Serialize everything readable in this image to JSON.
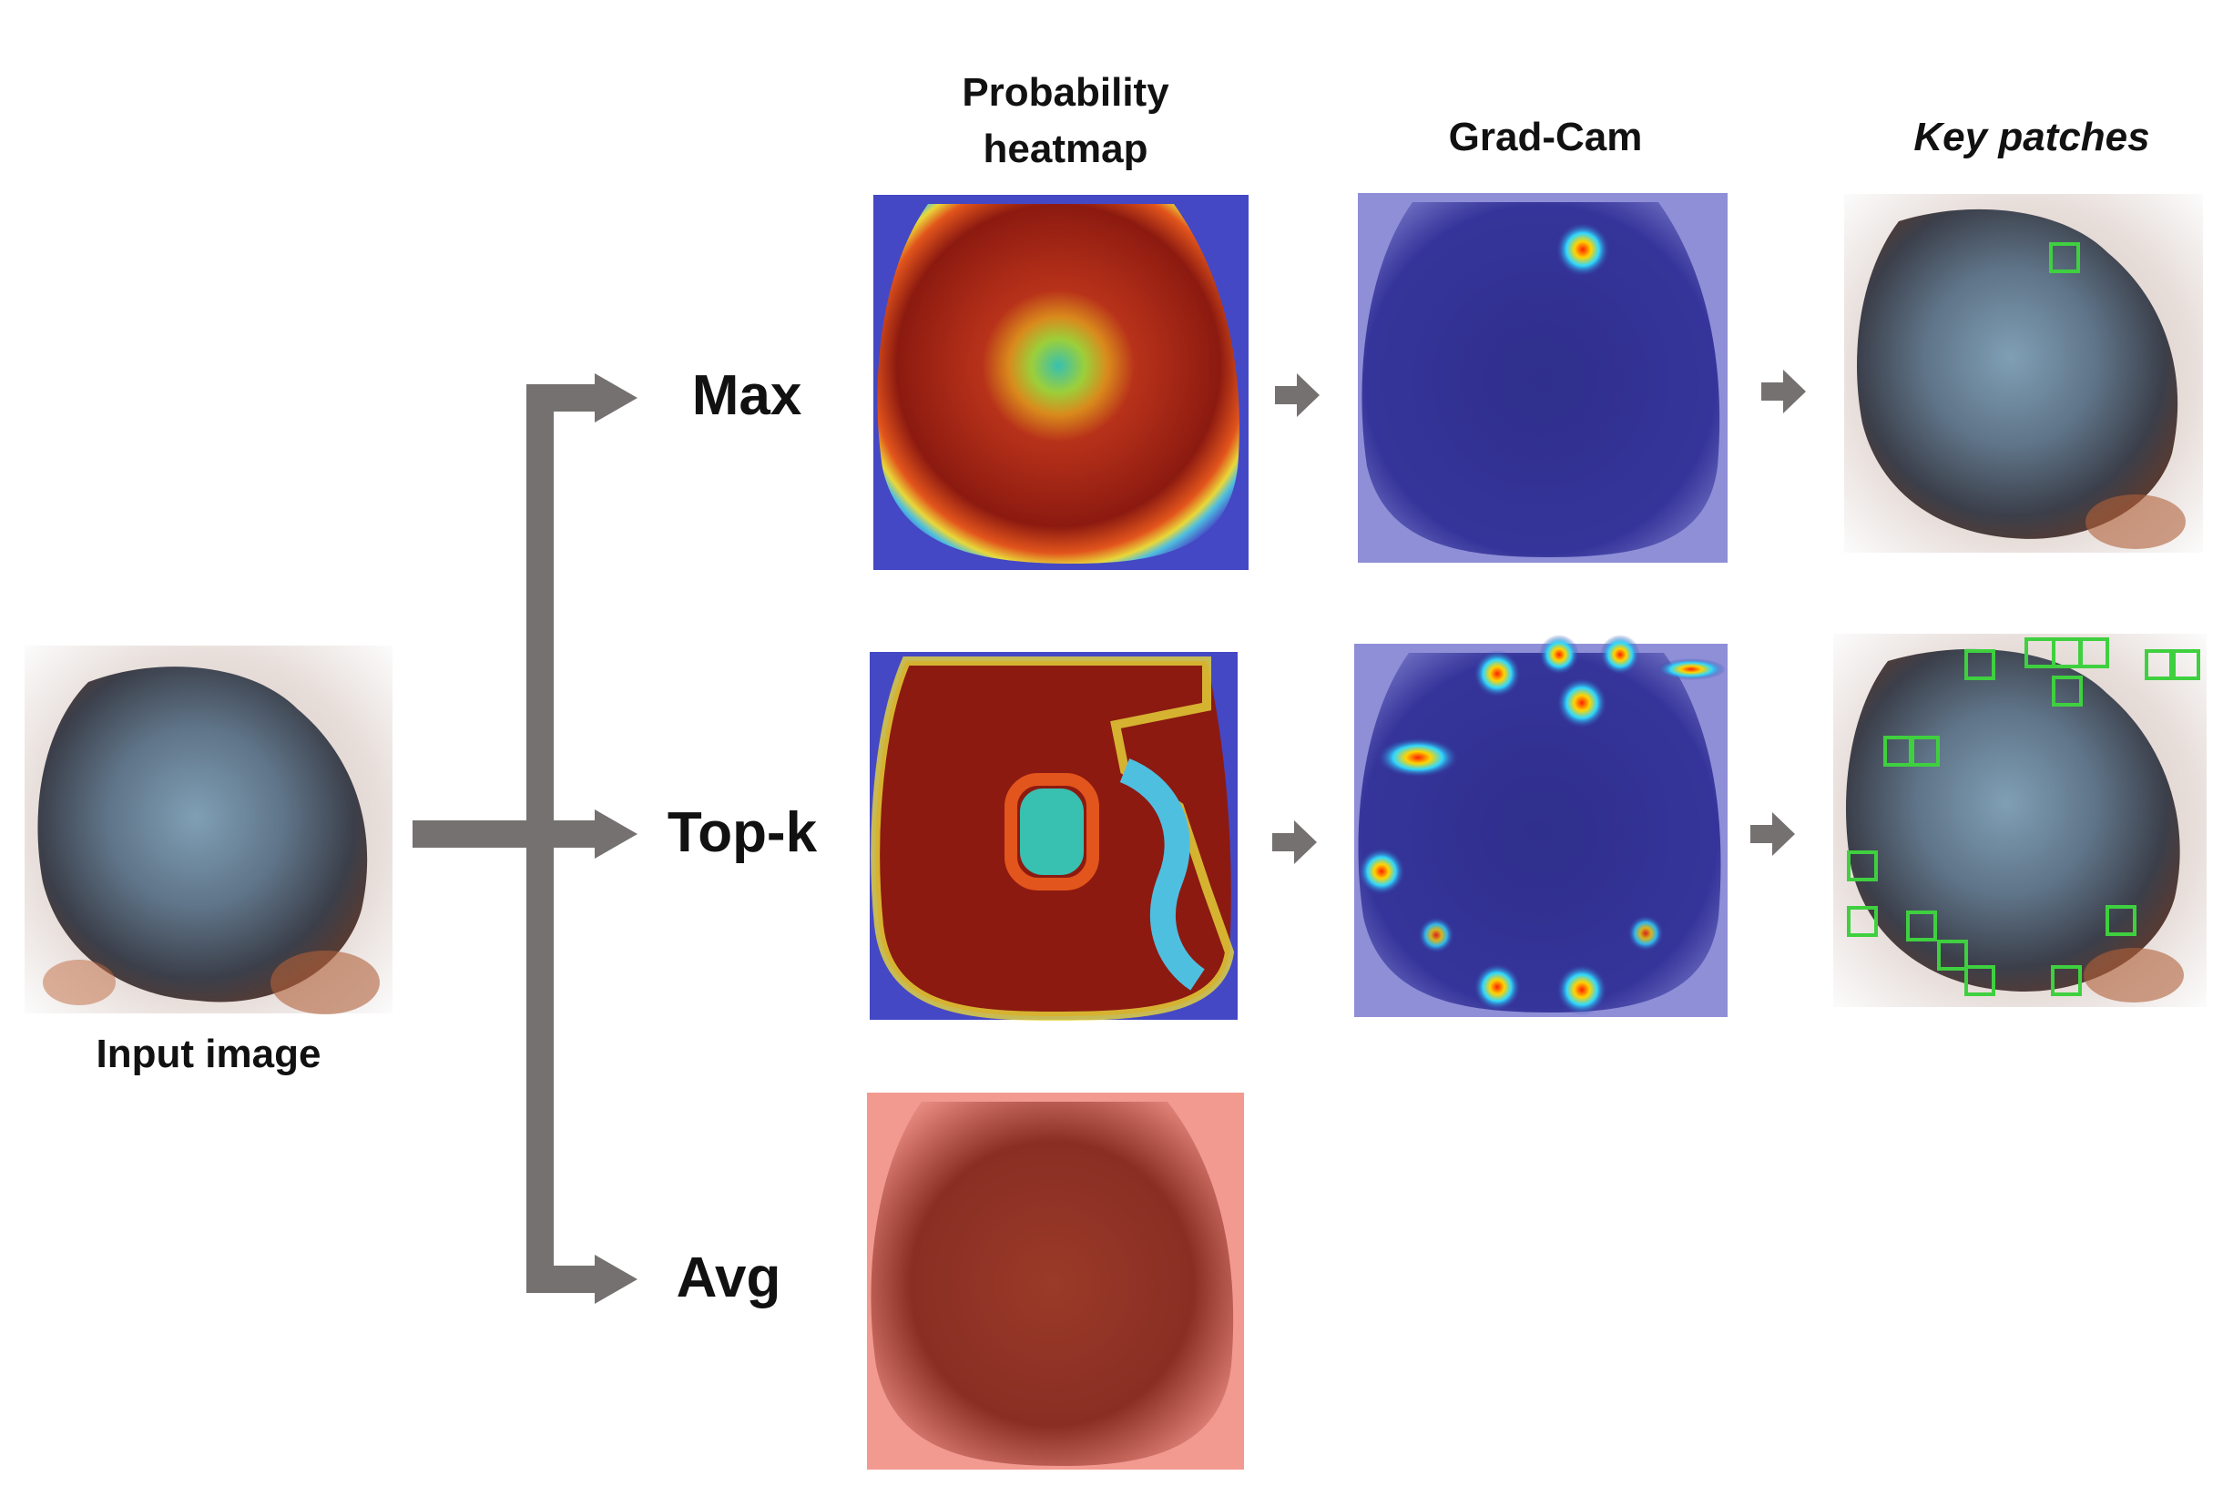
{
  "columns": {
    "prob": "Probability heatmap",
    "prob_line1": "Probability",
    "prob_line2": "heatmap",
    "gradcam": "Grad-Cam",
    "keypatches": "Key patches"
  },
  "input_label": "Input image",
  "branches": {
    "max": "Max",
    "topk": "Top-k",
    "avg": "Avg"
  },
  "colors": {
    "arrow": "#767171",
    "patch_box": "#3fd03f",
    "lesion_dark": "#3b3f4a",
    "lesion_blue": "#6f8ea6",
    "heat_red": "#8c1a10",
    "heat_blue": "#3b3cb4"
  },
  "icons": [
    "branch-arrow",
    "right-arrow"
  ]
}
